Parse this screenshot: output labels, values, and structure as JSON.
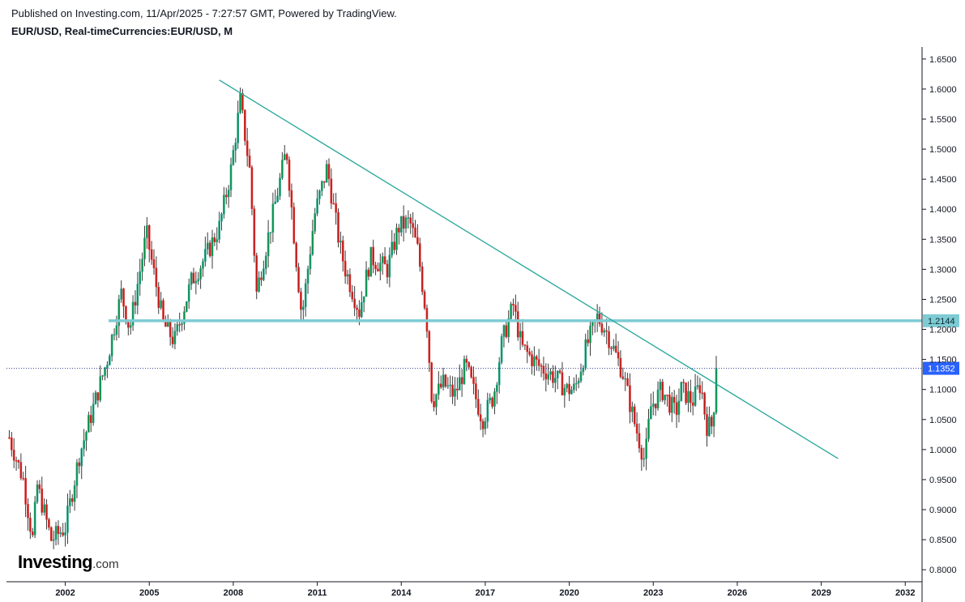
{
  "header": {
    "published": "Published on Investing.com, 11/Apr/2025 - 7:27:57 GMT, Powered by TradingView.",
    "title": "EUR/USD, Real-timeCurrencies:EUR/USD, M"
  },
  "logo": {
    "main": "Investing",
    "suffix": ".com"
  },
  "colors": {
    "up": "#26a69a",
    "up_fill": "#0b8f3c",
    "down": "#e53935",
    "down_fill": "#b71c1c",
    "wick": "#3a3a3a",
    "trendline": "#26a69a",
    "hline": "#7ecbd4",
    "last_price_badge": "#2962ff",
    "hline_badge": "#7ecbd4"
  },
  "chart_data": {
    "type": "candlestick",
    "interval": "M",
    "symbol": "EUR/USD",
    "x_ticks": [
      "2002",
      "2005",
      "2008",
      "2011",
      "2014",
      "2017",
      "2020",
      "2023",
      "2026",
      "2029",
      "2032"
    ],
    "y_ticks": [
      "1.6500",
      "1.6000",
      "1.5500",
      "1.5000",
      "1.4500",
      "1.4000",
      "1.3500",
      "1.3000",
      "1.2500",
      "1.2000",
      "1.1500",
      "1.1000",
      "1.0500",
      "1.0000",
      "0.9500",
      "0.9000",
      "0.8500",
      "0.8000"
    ],
    "y_range": [
      0.78,
      1.67
    ],
    "x_range": [
      1999.9,
      2032.6
    ],
    "series_monthly_close_approx": [
      [
        2000.0,
        1.02
      ],
      [
        2000.5,
        0.95
      ],
      [
        2000.83,
        0.85
      ],
      [
        2001.0,
        0.94
      ],
      [
        2001.5,
        0.85
      ],
      [
        2002.0,
        0.87
      ],
      [
        2002.5,
        0.99
      ],
      [
        2003.0,
        1.07
      ],
      [
        2003.5,
        1.15
      ],
      [
        2004.0,
        1.26
      ],
      [
        2004.3,
        1.2
      ],
      [
        2004.9,
        1.36
      ],
      [
        2005.5,
        1.21
      ],
      [
        2005.9,
        1.18
      ],
      [
        2006.5,
        1.28
      ],
      [
        2007.0,
        1.32
      ],
      [
        2007.5,
        1.37
      ],
      [
        2007.9,
        1.46
      ],
      [
        2008.25,
        1.58
      ],
      [
        2008.6,
        1.46
      ],
      [
        2008.83,
        1.26
      ],
      [
        2009.0,
        1.3
      ],
      [
        2009.5,
        1.41
      ],
      [
        2009.9,
        1.5
      ],
      [
        2010.2,
        1.34
      ],
      [
        2010.45,
        1.22
      ],
      [
        2010.9,
        1.39
      ],
      [
        2011.35,
        1.47
      ],
      [
        2011.8,
        1.34
      ],
      [
        2012.0,
        1.3
      ],
      [
        2012.5,
        1.23
      ],
      [
        2012.9,
        1.32
      ],
      [
        2013.5,
        1.3
      ],
      [
        2013.9,
        1.37
      ],
      [
        2014.3,
        1.38
      ],
      [
        2014.6,
        1.33
      ],
      [
        2014.9,
        1.22
      ],
      [
        2015.1,
        1.08
      ],
      [
        2015.5,
        1.11
      ],
      [
        2015.9,
        1.09
      ],
      [
        2016.3,
        1.14
      ],
      [
        2016.9,
        1.05
      ],
      [
        2017.3,
        1.09
      ],
      [
        2017.6,
        1.18
      ],
      [
        2018.0,
        1.24
      ],
      [
        2018.3,
        1.17
      ],
      [
        2018.9,
        1.14
      ],
      [
        2019.5,
        1.12
      ],
      [
        2019.9,
        1.1
      ],
      [
        2020.2,
        1.1
      ],
      [
        2020.6,
        1.17
      ],
      [
        2021.0,
        1.22
      ],
      [
        2021.3,
        1.2
      ],
      [
        2021.9,
        1.13
      ],
      [
        2022.3,
        1.05
      ],
      [
        2022.7,
        0.98
      ],
      [
        2022.9,
        1.07
      ],
      [
        2023.3,
        1.1
      ],
      [
        2023.8,
        1.06
      ],
      [
        2024.0,
        1.1
      ],
      [
        2024.4,
        1.08
      ],
      [
        2024.7,
        1.11
      ],
      [
        2024.9,
        1.04
      ],
      [
        2025.1,
        1.04
      ],
      [
        2025.28,
        1.1352
      ]
    ],
    "trendline": {
      "from": [
        2007.5,
        1.615
      ],
      "to": [
        2029.6,
        0.985
      ]
    },
    "horizontal_line": {
      "value": 1.2144,
      "label": "1.2144"
    },
    "last_price": {
      "value": 1.1352,
      "label": "1.1352",
      "style": "dotted"
    }
  }
}
